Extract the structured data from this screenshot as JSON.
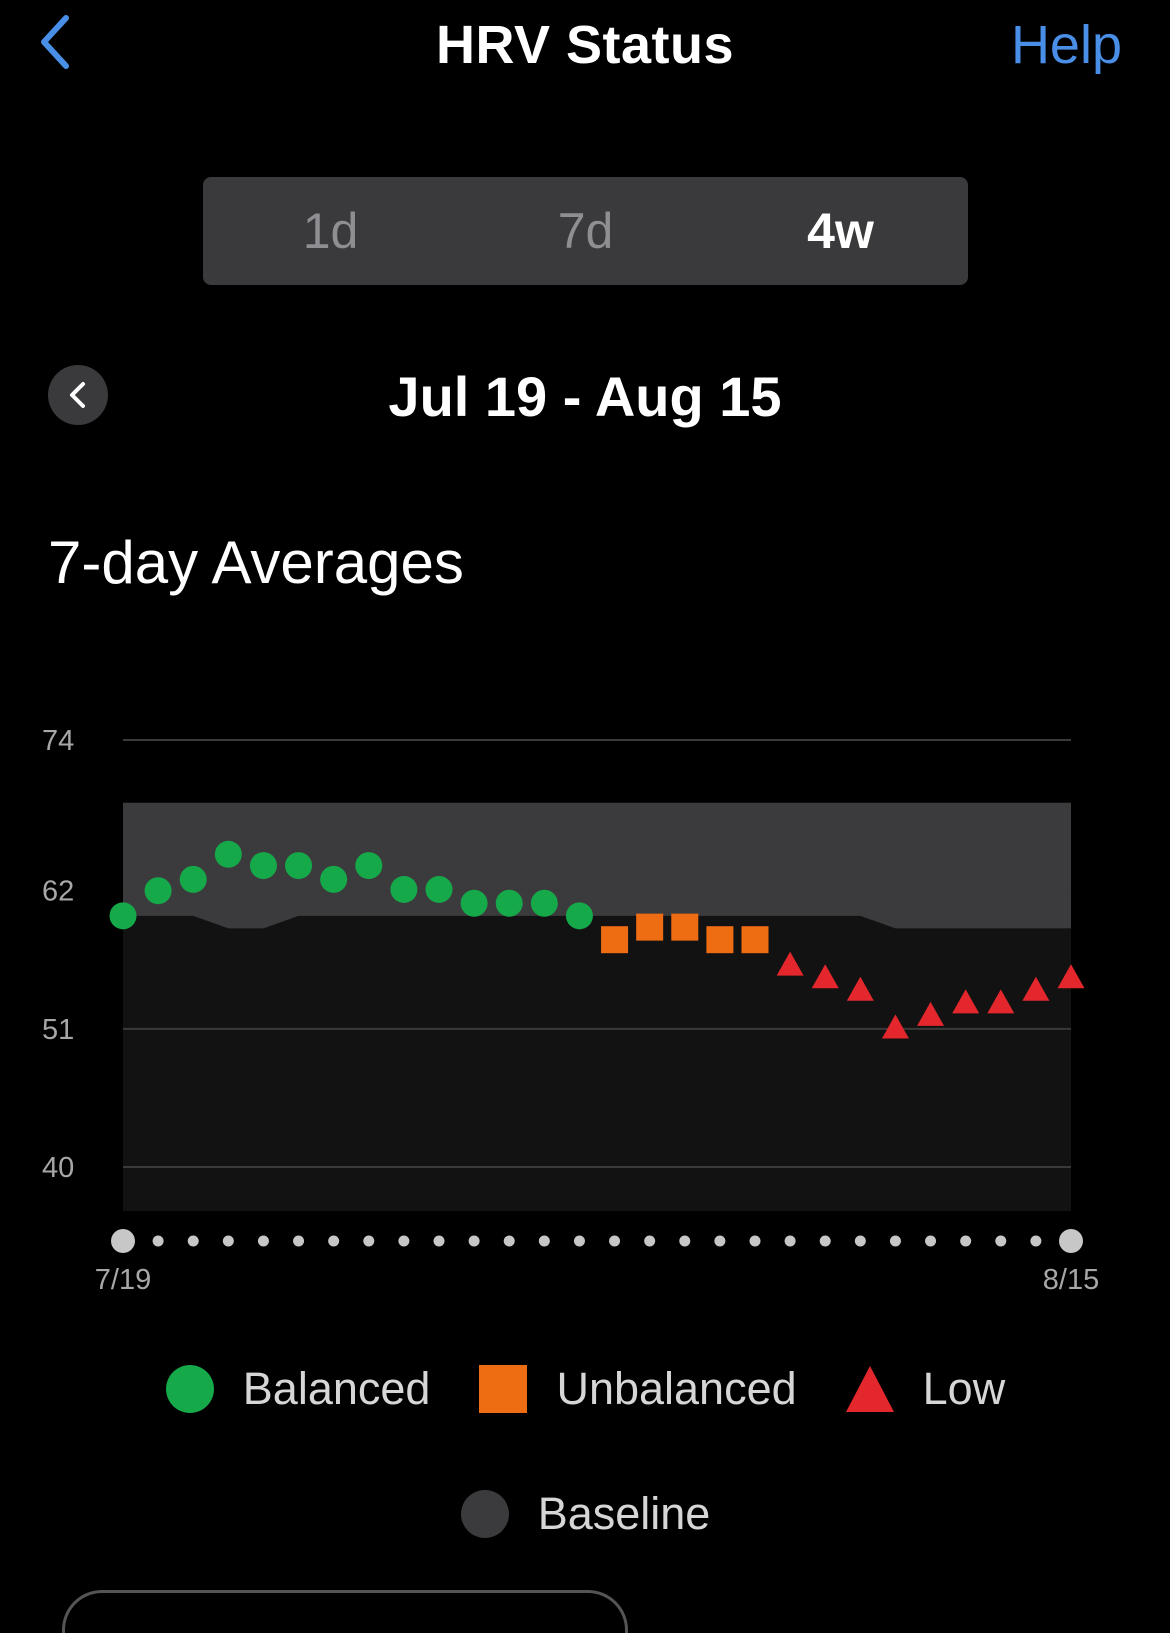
{
  "header": {
    "back_icon": "chevron-left-icon",
    "title": "HRV Status",
    "help_label": "Help",
    "accent_color": "#4a8fe7"
  },
  "tabs": [
    {
      "label": "1d",
      "active": false
    },
    {
      "label": "7d",
      "active": false
    },
    {
      "label": "4w",
      "active": true
    }
  ],
  "date_range": {
    "prev_icon": "chevron-left-icon",
    "label": "Jul 19 - Aug 15"
  },
  "section_title": "7-day Averages",
  "chart_data": {
    "type": "scatter",
    "title": "",
    "ylim": [
      40,
      74
    ],
    "y_ticks": [
      74,
      62,
      51,
      40
    ],
    "x_start_label": "7/19",
    "x_end_label": "8/15",
    "days": 28,
    "grid": true,
    "baseline": {
      "upper": [
        69,
        69,
        69,
        69,
        69,
        69,
        69,
        69,
        69,
        69,
        69,
        69,
        69,
        69,
        69,
        69,
        69,
        69,
        69,
        69,
        69,
        69,
        69,
        69,
        69,
        69,
        69,
        69
      ],
      "lower": [
        60,
        60,
        60,
        59,
        59,
        60,
        60,
        60,
        60,
        60,
        60,
        60,
        60,
        60,
        60,
        60,
        60,
        60,
        60,
        60,
        60,
        60,
        59,
        59,
        59,
        59,
        59,
        59
      ]
    },
    "values": [
      60,
      62,
      62.9,
      64.9,
      64,
      64,
      62.9,
      64,
      62.1,
      62.1,
      61,
      61,
      61,
      60,
      58.1,
      59.1,
      59.1,
      58.1,
      58.1,
      56,
      55,
      54,
      51,
      52,
      53,
      53,
      54,
      55
    ],
    "statuses": [
      "Balanced",
      "Balanced",
      "Balanced",
      "Balanced",
      "Balanced",
      "Balanced",
      "Balanced",
      "Balanced",
      "Balanced",
      "Balanced",
      "Balanced",
      "Balanced",
      "Balanced",
      "Balanced",
      "Unbalanced",
      "Unbalanced",
      "Unbalanced",
      "Unbalanced",
      "Unbalanced",
      "Low",
      "Low",
      "Low",
      "Low",
      "Low",
      "Low",
      "Low",
      "Low",
      "Low"
    ],
    "status_colors": {
      "Balanced": "#15a94a",
      "Unbalanced": "#ee6c12",
      "Low": "#e3272c",
      "Baseline": "#3b3b3d"
    }
  },
  "legend": [
    {
      "label": "Balanced",
      "shape": "circle",
      "color": "#15a94a"
    },
    {
      "label": "Unbalanced",
      "shape": "square",
      "color": "#ee6c12"
    },
    {
      "label": "Low",
      "shape": "triangle",
      "color": "#e3272c"
    },
    {
      "label": "Baseline",
      "shape": "circle",
      "color": "#3b3b3d"
    }
  ]
}
